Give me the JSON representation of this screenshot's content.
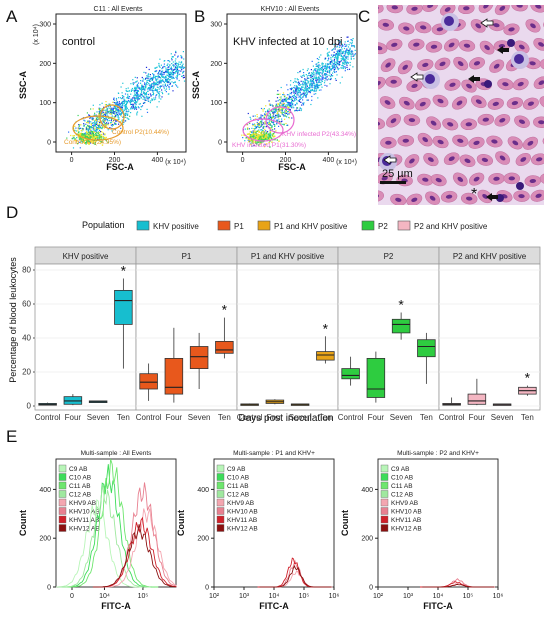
{
  "panels": {
    "A": {
      "letter": "A",
      "title": "C11 : All Events",
      "label": "control",
      "xlabel": "FSC-A",
      "ylabel": "SSC-A",
      "x_mult": "(x 10⁴)",
      "y_mult": "(x 10⁴)",
      "x_ticks": [
        "0",
        "200",
        "400"
      ],
      "y_ticks": [
        "0",
        "100",
        "200",
        "300"
      ],
      "gate_p1": "Control P1(24.95%)",
      "gate_p2": "Control P2(10.44%)",
      "gate_color": "#e69b2d"
    },
    "B": {
      "letter": "B",
      "title": "KHV10 : All Events",
      "label": "KHV infected at 10 dpi",
      "xlabel": "FSC-A",
      "ylabel": "SSC-A",
      "x_mult": "(x 10⁴)",
      "y_mult": "(x 10⁴)",
      "x_ticks": [
        "0",
        "200",
        "400"
      ],
      "y_ticks": [
        "0",
        "100",
        "200",
        "300"
      ],
      "gate_p1": "KHV infected P1(31.30%)",
      "gate_p2": "KHV infected P2(43.34%)",
      "gate_color": "#e86bd1"
    },
    "C": {
      "letter": "C",
      "scale_bar": "25 µm",
      "asterisk": "*"
    },
    "D": {
      "letter": "D",
      "legend_title": "Population",
      "legend": [
        {
          "name": "KHV positive",
          "color": "#17becf"
        },
        {
          "name": "P1",
          "color": "#e8581c"
        },
        {
          "name": "P1 and KHV positive",
          "color": "#e8a317"
        },
        {
          "name": "P2",
          "color": "#2ecc40"
        },
        {
          "name": "P2 and KHV positive",
          "color": "#f4b6c2"
        }
      ],
      "ylabel": "Percentage of blood leukocytes",
      "xlabel": "Days post inoculation",
      "y_ticks": [
        "0",
        "20",
        "40",
        "60",
        "80"
      ],
      "star": "*"
    },
    "E": {
      "letter": "E",
      "ylabel": "Count",
      "xlabel": "FITC-A",
      "legend": [
        {
          "name": "C9 AB",
          "color": "#b8f5b8"
        },
        {
          "name": "C10 AB",
          "color": "#3ddc5a"
        },
        {
          "name": "C11 AB",
          "color": "#6ee66e"
        },
        {
          "name": "C12 AB",
          "color": "#9fe89f"
        },
        {
          "name": "KHV9 AB",
          "color": "#f4a6b0"
        },
        {
          "name": "KHV10 AB",
          "color": "#e88090"
        },
        {
          "name": "KHV11 AB",
          "color": "#d0202a"
        },
        {
          "name": "KHV12 AB",
          "color": "#8b1010"
        }
      ],
      "titles": [
        "Multi-sample : All Events",
        "Multi-sample : P1 and KHV+",
        "Multi-sample : P2 and KHV+"
      ],
      "hist1_xticks": [
        "0",
        "10⁴",
        "10⁵"
      ],
      "log_xticks": [
        "10²",
        "10³",
        "10⁴",
        "10⁵",
        "10⁶"
      ],
      "y_ticks": [
        "0",
        "200",
        "400"
      ]
    }
  },
  "chart_data": [
    {
      "panel": "D",
      "type": "box",
      "categories": [
        "Control",
        "Four",
        "Seven",
        "Ten"
      ],
      "ylim": [
        0,
        80
      ],
      "facets": [
        {
          "name": "KHV positive",
          "color": "#17becf",
          "star_on": "Ten",
          "boxes": [
            {
              "cat": "Control",
              "q1": 0.5,
              "median": 1,
              "q3": 1.5,
              "low": 0.3,
              "high": 2
            },
            {
              "cat": "Four",
              "q1": 1,
              "median": 3,
              "q3": 5.5,
              "low": 0.5,
              "high": 7
            },
            {
              "cat": "Seven",
              "q1": 2,
              "median": 2.5,
              "q3": 3,
              "low": 2,
              "high": 3
            },
            {
              "cat": "Ten",
              "q1": 48,
              "median": 62,
              "q3": 68,
              "low": 22,
              "high": 75
            }
          ]
        },
        {
          "name": "P1",
          "color": "#e8581c",
          "star_on": "Ten",
          "boxes": [
            {
              "cat": "Control",
              "q1": 10,
              "median": 14,
              "q3": 19,
              "low": 3,
              "high": 25
            },
            {
              "cat": "Four",
              "q1": 7,
              "median": 11,
              "q3": 28,
              "low": 2,
              "high": 46
            },
            {
              "cat": "Seven",
              "q1": 22,
              "median": 29,
              "q3": 35,
              "low": 10,
              "high": 43
            },
            {
              "cat": "Ten",
              "q1": 31,
              "median": 33,
              "q3": 38,
              "low": 28,
              "high": 52
            }
          ]
        },
        {
          "name": "P1 and KHV positive",
          "color": "#e8a317",
          "star_on": "Ten",
          "boxes": [
            {
              "cat": "Control",
              "q1": 0.5,
              "median": 1,
              "q3": 1.2,
              "low": 0.3,
              "high": 1.5
            },
            {
              "cat": "Four",
              "q1": 1.5,
              "median": 2.5,
              "q3": 3.5,
              "low": 1,
              "high": 4
            },
            {
              "cat": "Seven",
              "q1": 0.8,
              "median": 1,
              "q3": 1.2,
              "low": 0.8,
              "high": 1.2
            },
            {
              "cat": "Ten",
              "q1": 27,
              "median": 30,
              "q3": 32,
              "low": 25,
              "high": 41
            }
          ]
        },
        {
          "name": "P2",
          "color": "#2ecc40",
          "star_on": "Seven",
          "boxes": [
            {
              "cat": "Control",
              "q1": 16,
              "median": 18,
              "q3": 22,
              "low": 12,
              "high": 29
            },
            {
              "cat": "Four",
              "q1": 5,
              "median": 10,
              "q3": 28,
              "low": 2,
              "high": 32
            },
            {
              "cat": "Seven",
              "q1": 43,
              "median": 48,
              "q3": 51,
              "low": 39,
              "high": 55
            },
            {
              "cat": "Ten",
              "q1": 29,
              "median": 35,
              "q3": 39,
              "low": 13,
              "high": 43
            }
          ]
        },
        {
          "name": "P2 and KHV positive",
          "color": "#f4b6c2",
          "star_on": "Ten",
          "boxes": [
            {
              "cat": "Control",
              "q1": 0.5,
              "median": 1,
              "q3": 1.5,
              "low": 0.3,
              "high": 5
            },
            {
              "cat": "Four",
              "q1": 1,
              "median": 3,
              "q3": 7,
              "low": 0.5,
              "high": 16
            },
            {
              "cat": "Seven",
              "q1": 0.8,
              "median": 1,
              "q3": 1.2,
              "low": 0.8,
              "high": 1.2
            },
            {
              "cat": "Ten",
              "q1": 7,
              "median": 9,
              "q3": 11,
              "low": 6,
              "high": 12
            }
          ]
        }
      ]
    },
    {
      "panel": "E",
      "type": "line",
      "name": "Multi-sample : All Events",
      "x_positions": [
        0,
        10000,
        100000
      ],
      "series_peaks": [
        {
          "sample": "C9 AB",
          "peak_log": 3.8,
          "height": 330
        },
        {
          "sample": "C10 AB",
          "peak_log": 4.1,
          "height": 450
        },
        {
          "sample": "C11 AB",
          "peak_log": 4.2,
          "height": 480
        },
        {
          "sample": "C12 AB",
          "peak_log": 4.0,
          "height": 380
        },
        {
          "sample": "KHV9 AB",
          "peak_log": 5.1,
          "height": 300
        },
        {
          "sample": "KHV10 AB",
          "peak_log": 5.0,
          "height": 390
        },
        {
          "sample": "KHV11 AB",
          "peak_log": 4.95,
          "height": 260
        },
        {
          "sample": "KHV12 AB",
          "peak_log": 4.9,
          "height": 230
        }
      ]
    },
    {
      "panel": "E",
      "type": "line",
      "name": "Multi-sample : P1 and KHV+",
      "series_peaks": [
        {
          "sample": "KHV9 AB",
          "peak_log": 4.75,
          "height": 60
        },
        {
          "sample": "KHV10 AB",
          "peak_log": 4.7,
          "height": 95
        },
        {
          "sample": "KHV11 AB",
          "peak_log": 4.65,
          "height": 110
        },
        {
          "sample": "KHV12 AB",
          "peak_log": 4.72,
          "height": 80
        }
      ]
    },
    {
      "panel": "E",
      "type": "line",
      "name": "Multi-sample : P2 and KHV+",
      "series_peaks": [
        {
          "sample": "KHV9 AB",
          "peak_log": 4.7,
          "height": 15
        },
        {
          "sample": "KHV10 AB",
          "peak_log": 4.65,
          "height": 30
        },
        {
          "sample": "KHV11 AB",
          "peak_log": 4.6,
          "height": 20
        },
        {
          "sample": "KHV12 AB",
          "peak_log": 4.68,
          "height": 10
        }
      ]
    }
  ]
}
